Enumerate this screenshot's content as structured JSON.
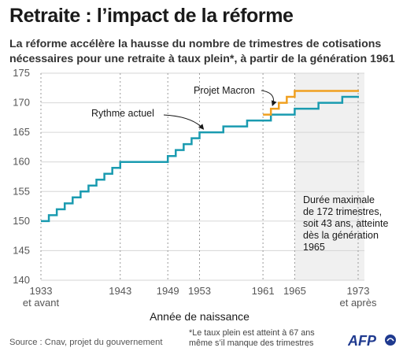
{
  "header": {
    "title": "Retraite : l’impact de la réforme",
    "subtitle": "La réforme accélère la hausse du nombre de trimestres de cotisations nécessaires pour une retraite à taux plein*, à partir de la génération 1961"
  },
  "chart_data": {
    "type": "line",
    "step": true,
    "xlabel": "Année de naissance",
    "ylabel": "",
    "xlim": [
      1933,
      1973
    ],
    "ylim": [
      140,
      175
    ],
    "yticks": [
      140,
      145,
      150,
      155,
      160,
      165,
      170,
      175
    ],
    "xticks": [
      {
        "value": 1933,
        "label": "1933",
        "label2": "et avant"
      },
      {
        "value": 1943,
        "label": "1943"
      },
      {
        "value": 1949,
        "label": "1949"
      },
      {
        "value": 1953,
        "label": "1953"
      },
      {
        "value": 1961,
        "label": "1961"
      },
      {
        "value": 1965,
        "label": "1965"
      },
      {
        "value": 1973,
        "label": "1973",
        "label2": "et après"
      }
    ],
    "grid": true,
    "shaded_region": {
      "from": 1965,
      "to": 1973,
      "color": "#f0f0f0"
    },
    "series": [
      {
        "name": "Rythme actuel",
        "color": "#1a9bb0",
        "x": [
          1933,
          1934,
          1935,
          1936,
          1937,
          1938,
          1939,
          1940,
          1941,
          1942,
          1943,
          1944,
          1945,
          1946,
          1947,
          1948,
          1949,
          1950,
          1951,
          1952,
          1953,
          1954,
          1955,
          1956,
          1957,
          1958,
          1959,
          1960,
          1961,
          1962,
          1963,
          1964,
          1965,
          1966,
          1967,
          1968,
          1969,
          1970,
          1971,
          1972,
          1973
        ],
        "y": [
          150,
          151,
          152,
          153,
          154,
          155,
          156,
          157,
          158,
          159,
          160,
          160,
          160,
          160,
          160,
          160,
          161,
          162,
          163,
          164,
          165,
          165,
          165,
          166,
          166,
          166,
          167,
          167,
          167,
          168,
          168,
          168,
          169,
          169,
          169,
          170,
          170,
          170,
          171,
          171,
          171
        ]
      },
      {
        "name": "Projet Macron",
        "color": "#f0a020",
        "x": [
          1961,
          1962,
          1963,
          1964,
          1965,
          1966,
          1967,
          1968,
          1969,
          1970,
          1971,
          1972,
          1973
        ],
        "y": [
          168,
          169,
          170,
          171,
          172,
          172,
          172,
          172,
          172,
          172,
          172,
          172,
          172
        ]
      }
    ],
    "annotations": [
      {
        "text": "Rythme actuel",
        "series": "Rythme actuel"
      },
      {
        "text": "Projet Macron",
        "series": "Projet Macron"
      }
    ],
    "side_note": [
      "Durée maximale",
      "de 172 trimestres,",
      "soit 43 ans, atteinte",
      "dès la génération",
      "1965"
    ]
  },
  "footer": {
    "source": "Source : Cnav, projet du gouvernement",
    "footnote_line1": "*Le taux plein est atteint à 67 ans",
    "footnote_line2": "même s’il manque des trimestres",
    "logo": "AFP"
  }
}
